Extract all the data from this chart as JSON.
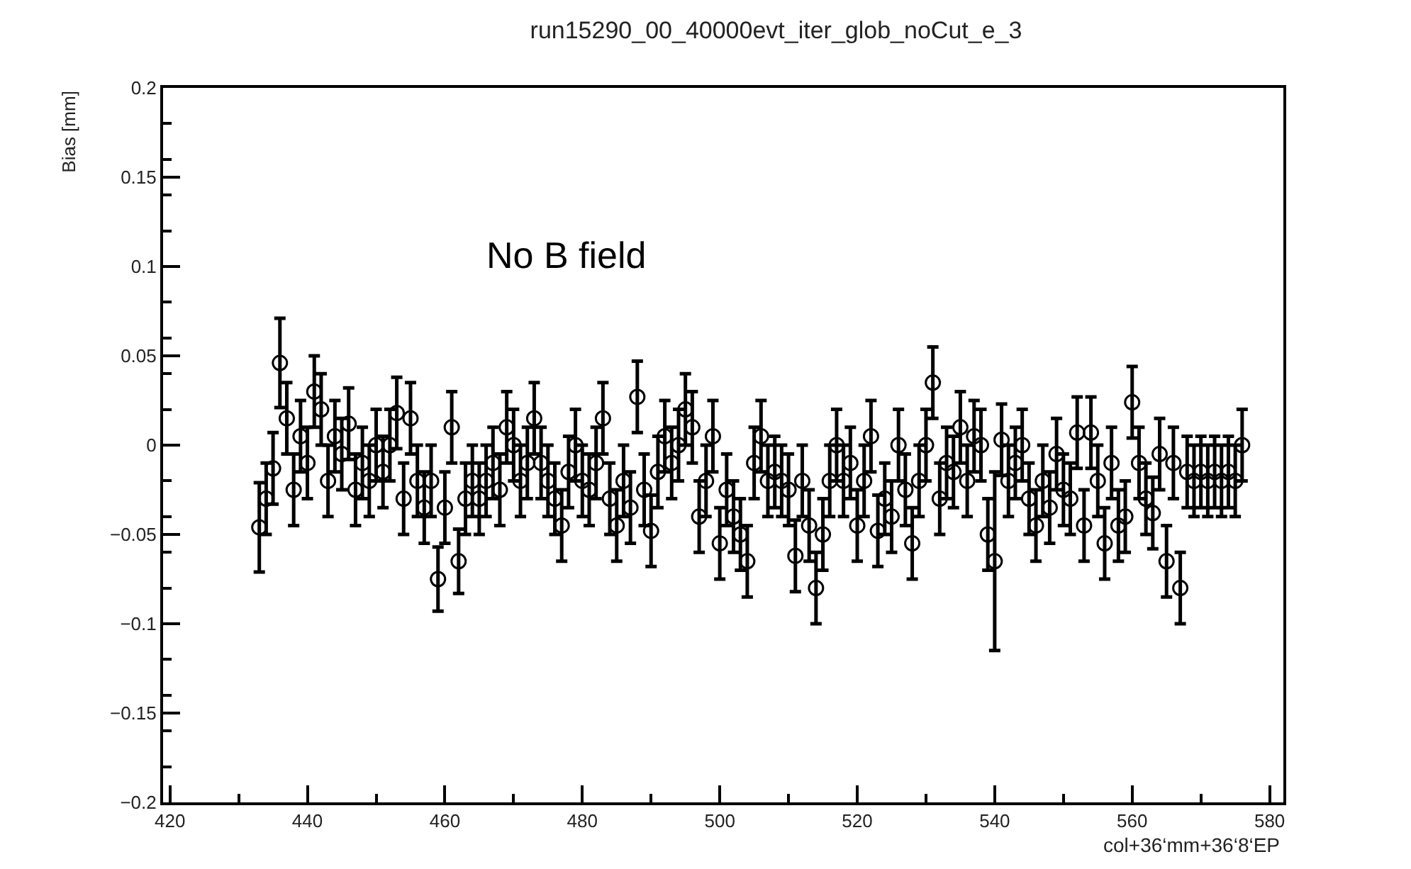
{
  "chart_data": {
    "type": "scatter",
    "title": "run15290_00_40000evt_iter_glob_noCut_e_3",
    "xlabel": "col+36‘mm+36‘8‘EP",
    "ylabel": "Bias [mm]",
    "annotations": [
      "No B field"
    ],
    "x": [
      433,
      434,
      435,
      436,
      437,
      438,
      439,
      440,
      441,
      442,
      443,
      444,
      445,
      446,
      447,
      448,
      449,
      450,
      451,
      452,
      453,
      454,
      455,
      456,
      457,
      458,
      459,
      460,
      461,
      462,
      463,
      464,
      465,
      466,
      467,
      468,
      469,
      470,
      471,
      472,
      473,
      474,
      475,
      476,
      477,
      478,
      479,
      480,
      481,
      482,
      483,
      484,
      485,
      486,
      487,
      488,
      489,
      490,
      491,
      492,
      493,
      494,
      495,
      496,
      497,
      498,
      499,
      500,
      501,
      502,
      503,
      504,
      505,
      506,
      507,
      508,
      509,
      510,
      511,
      512,
      513,
      514,
      515,
      516,
      517,
      518,
      519,
      520,
      521,
      522,
      523,
      524,
      525,
      526,
      527,
      528,
      529,
      530,
      531,
      532,
      533,
      534,
      535,
      536,
      537,
      538,
      539,
      540,
      541,
      542,
      543,
      544,
      545,
      546,
      547,
      548,
      549,
      550,
      551,
      552,
      553,
      554,
      555,
      556,
      557,
      558,
      559,
      560,
      561,
      562,
      563,
      564,
      565,
      566,
      567,
      568,
      569,
      570,
      571,
      572,
      573,
      574,
      575,
      576
    ],
    "series": [
      {
        "color": "#000000",
        "values": [
          -0.046,
          -0.03,
          -0.013,
          0.046,
          0.015,
          -0.025,
          0.005,
          -0.01,
          0.03,
          0.02,
          -0.02,
          0.005,
          -0.005,
          0.012,
          -0.025,
          -0.01,
          -0.02,
          0.0,
          -0.015,
          0.0,
          0.018,
          -0.03,
          0.015,
          -0.02,
          -0.035,
          -0.02,
          -0.075,
          -0.035,
          0.01,
          -0.065,
          -0.03,
          -0.02,
          -0.03,
          -0.02,
          -0.01,
          -0.025,
          0.01,
          0.0,
          -0.02,
          -0.01,
          0.015,
          -0.01,
          -0.02,
          -0.03,
          -0.045,
          -0.015,
          0.0,
          -0.02,
          -0.025,
          -0.01,
          0.015,
          -0.03,
          -0.045,
          -0.02,
          -0.035,
          0.027,
          -0.025,
          -0.048,
          -0.015,
          0.005,
          -0.01,
          0.0,
          0.02,
          0.01,
          -0.04,
          -0.02,
          0.005,
          -0.055,
          -0.025,
          -0.04,
          -0.05,
          -0.065,
          -0.01,
          0.005,
          -0.02,
          -0.015,
          -0.02,
          -0.025,
          -0.062,
          -0.02,
          -0.045,
          -0.08,
          -0.05,
          -0.02,
          0.0,
          -0.02,
          -0.01,
          -0.045,
          -0.02,
          0.005,
          -0.048,
          -0.03,
          -0.04,
          0.0,
          -0.025,
          -0.055,
          -0.02,
          0.0,
          0.035,
          -0.03,
          -0.01,
          -0.015,
          0.01,
          -0.02,
          0.005,
          0.0,
          -0.05,
          -0.065,
          0.003,
          -0.02,
          -0.01,
          0.0,
          -0.03,
          -0.045,
          -0.02,
          -0.035,
          -0.005,
          -0.025,
          -0.03,
          0.007,
          -0.045,
          0.007,
          -0.02,
          -0.055,
          -0.01,
          -0.045,
          -0.04,
          0.024,
          -0.01,
          -0.03,
          -0.038,
          -0.005,
          -0.065,
          -0.01,
          -0.08,
          -0.015,
          -0.02,
          -0.015,
          -0.02,
          -0.015,
          -0.02,
          -0.015,
          -0.02,
          0.0
        ],
        "errors": [
          0.025,
          0.02,
          0.02,
          0.025,
          0.02,
          0.02,
          0.02,
          0.02,
          0.02,
          0.02,
          0.02,
          0.02,
          0.02,
          0.02,
          0.02,
          0.02,
          0.02,
          0.02,
          0.02,
          0.02,
          0.02,
          0.02,
          0.02,
          0.02,
          0.02,
          0.02,
          0.018,
          0.02,
          0.02,
          0.018,
          0.02,
          0.02,
          0.02,
          0.02,
          0.02,
          0.02,
          0.02,
          0.02,
          0.02,
          0.02,
          0.02,
          0.02,
          0.02,
          0.02,
          0.02,
          0.02,
          0.02,
          0.02,
          0.02,
          0.02,
          0.02,
          0.02,
          0.02,
          0.02,
          0.02,
          0.02,
          0.02,
          0.02,
          0.02,
          0.02,
          0.02,
          0.02,
          0.02,
          0.02,
          0.02,
          0.02,
          0.02,
          0.02,
          0.02,
          0.02,
          0.02,
          0.02,
          0.02,
          0.02,
          0.02,
          0.02,
          0.02,
          0.02,
          0.02,
          0.02,
          0.02,
          0.02,
          0.02,
          0.02,
          0.02,
          0.02,
          0.02,
          0.02,
          0.02,
          0.02,
          0.02,
          0.02,
          0.02,
          0.02,
          0.02,
          0.02,
          0.02,
          0.02,
          0.02,
          0.02,
          0.02,
          0.02,
          0.02,
          0.02,
          0.02,
          0.02,
          0.02,
          0.05,
          0.02,
          0.02,
          0.02,
          0.02,
          0.02,
          0.02,
          0.02,
          0.02,
          0.02,
          0.02,
          0.02,
          0.02,
          0.02,
          0.02,
          0.02,
          0.02,
          0.02,
          0.02,
          0.02,
          0.02,
          0.02,
          0.02,
          0.02,
          0.02,
          0.02,
          0.02,
          0.02,
          0.02,
          0.02,
          0.02,
          0.02,
          0.02,
          0.02,
          0.02,
          0.02,
          0.02
        ]
      }
    ],
    "xlim": [
      419,
      582
    ],
    "xticks": [
      420,
      440,
      460,
      480,
      500,
      520,
      540,
      560,
      580
    ],
    "ylim": [
      -0.2,
      0.2
    ],
    "yticks": [
      {
        "value": -0.2,
        "label": "−0.2"
      },
      {
        "value": -0.15,
        "label": "−0.15"
      },
      {
        "value": -0.1,
        "label": "−0.1"
      },
      {
        "value": -0.05,
        "label": "−0.05"
      },
      0,
      0.05,
      0.1,
      0.15,
      0.2
    ],
    "marker": "circle"
  }
}
